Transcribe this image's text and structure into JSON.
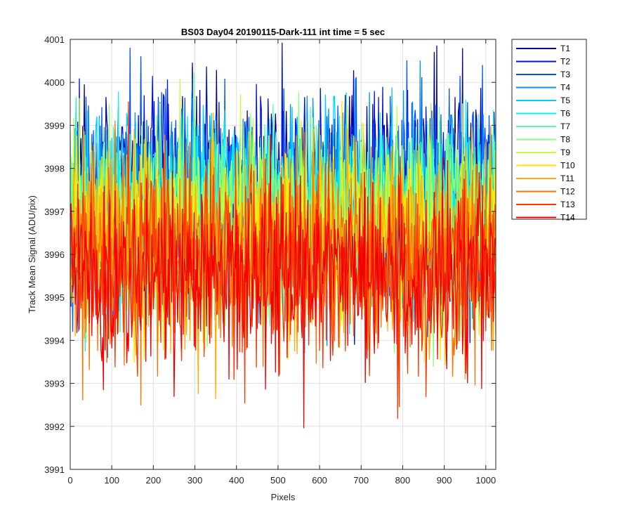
{
  "chart_data": {
    "type": "line",
    "title": "BS03 Day04 20190115-Dark-111 int time = 5 sec",
    "xlabel": "Pixels",
    "ylabel": "Track Mean Signal (ADU/pix)",
    "xlim": [
      0,
      1024
    ],
    "ylim": [
      3991,
      4001
    ],
    "xticks": [
      0,
      100,
      200,
      300,
      400,
      500,
      600,
      700,
      800,
      900,
      1000
    ],
    "yticks": [
      3991,
      3992,
      3993,
      3994,
      3995,
      3996,
      3997,
      3998,
      3999,
      4000,
      4001
    ],
    "grid": true,
    "legend_position": "outside-top-right",
    "series": [
      {
        "name": "T1",
        "color": "#0000a3",
        "mean": 3997.6,
        "spread": 1.1
      },
      {
        "name": "T2",
        "color": "#0014d6",
        "mean": 3997.5,
        "spread": 1.1
      },
      {
        "name": "T3",
        "color": "#0050ff",
        "mean": 3997.4,
        "spread": 1.1
      },
      {
        "name": "T4",
        "color": "#0094ff",
        "mean": 3997.3,
        "spread": 1.1
      },
      {
        "name": "T5",
        "color": "#00ceff",
        "mean": 3997.2,
        "spread": 1.1
      },
      {
        "name": "T6",
        "color": "#14f0e8",
        "mean": 3997.0,
        "spread": 1.1
      },
      {
        "name": "T7",
        "color": "#4dffb3",
        "mean": 3996.9,
        "spread": 1.1
      },
      {
        "name": "T8",
        "color": "#86ff7a",
        "mean": 3996.8,
        "spread": 1.1
      },
      {
        "name": "T9",
        "color": "#c4ff3b",
        "mean": 3996.7,
        "spread": 1.1
      },
      {
        "name": "T10",
        "color": "#ffe600",
        "mean": 3996.4,
        "spread": 1.1
      },
      {
        "name": "T11",
        "color": "#ffae00",
        "mean": 3996.2,
        "spread": 1.1
      },
      {
        "name": "T12",
        "color": "#ff7000",
        "mean": 3996.0,
        "spread": 1.1
      },
      {
        "name": "T13",
        "color": "#ff3600",
        "mean": 3995.8,
        "spread": 1.1
      },
      {
        "name": "T14",
        "color": "#f20000",
        "mean": 3995.6,
        "spread": 1.1
      }
    ]
  }
}
